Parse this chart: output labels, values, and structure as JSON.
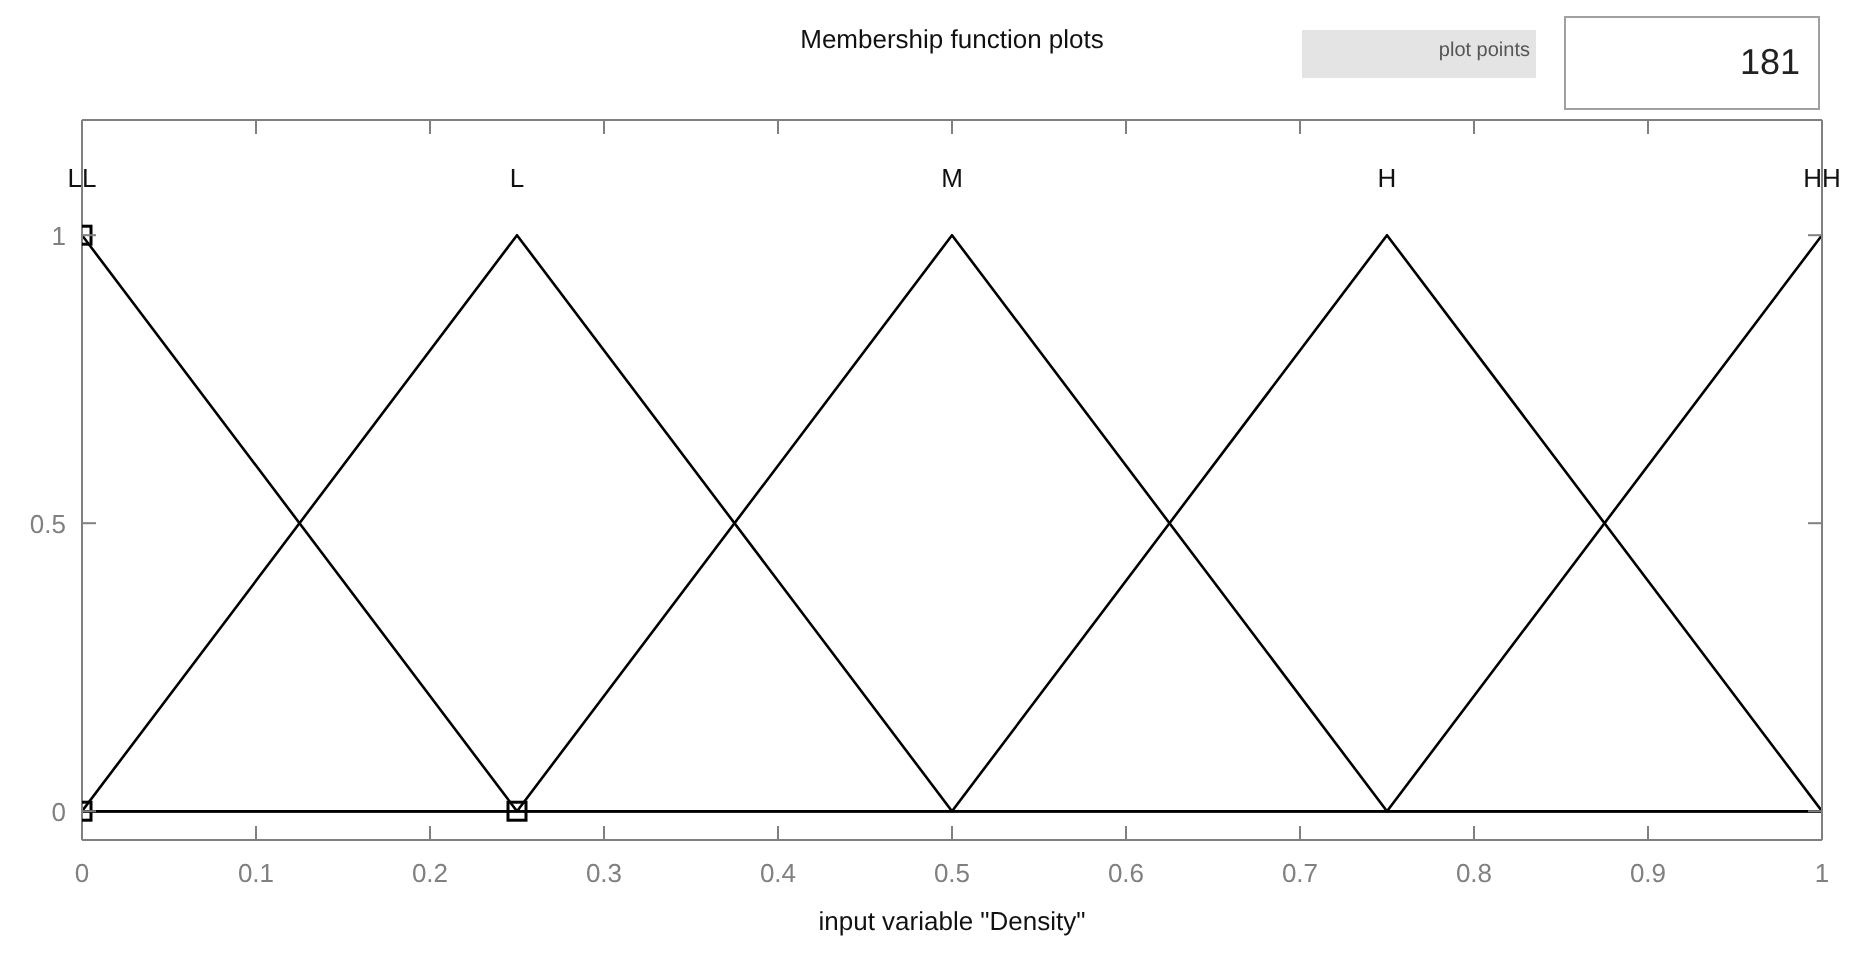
{
  "chart_data": {
    "type": "line",
    "title": "Membership function plots",
    "xlabel": "input variable \"Density\"",
    "annotations": [
      "plot points",
      "181"
    ],
    "xlim": [
      0,
      1
    ],
    "xticks": [
      0,
      0.1,
      0.2,
      0.3,
      0.4,
      0.5,
      0.6,
      0.7,
      0.8,
      0.9,
      1
    ],
    "ylim": [
      -0.05,
      1.2
    ],
    "yticks": [
      0,
      0.5,
      1
    ],
    "grid": false,
    "legend": false,
    "marker": "none",
    "line_style": "solid",
    "series": [
      {
        "name": "LL",
        "color": "#000000",
        "x": [
          0,
          0.25,
          1
        ],
        "values": [
          1,
          0,
          0
        ]
      },
      {
        "name": "L",
        "color": "#000000",
        "x": [
          0,
          0.25,
          0.5,
          1
        ],
        "values": [
          0,
          1,
          0,
          0
        ]
      },
      {
        "name": "M",
        "color": "#000000",
        "x": [
          0,
          0.25,
          0.5,
          0.75,
          1
        ],
        "values": [
          0,
          0,
          1,
          0,
          0
        ]
      },
      {
        "name": "H",
        "color": "#000000",
        "x": [
          0,
          0.5,
          0.75,
          1
        ],
        "values": [
          0,
          0,
          1,
          0
        ]
      },
      {
        "name": "HH",
        "color": "#000000",
        "x": [
          0,
          0.75,
          1
        ],
        "values": [
          0,
          0,
          1
        ]
      },
      {
        "type": "scatter",
        "marker": "square",
        "color": "#000000",
        "x": [
          0,
          0,
          0.25
        ],
        "values": [
          0,
          1,
          0
        ]
      }
    ]
  }
}
